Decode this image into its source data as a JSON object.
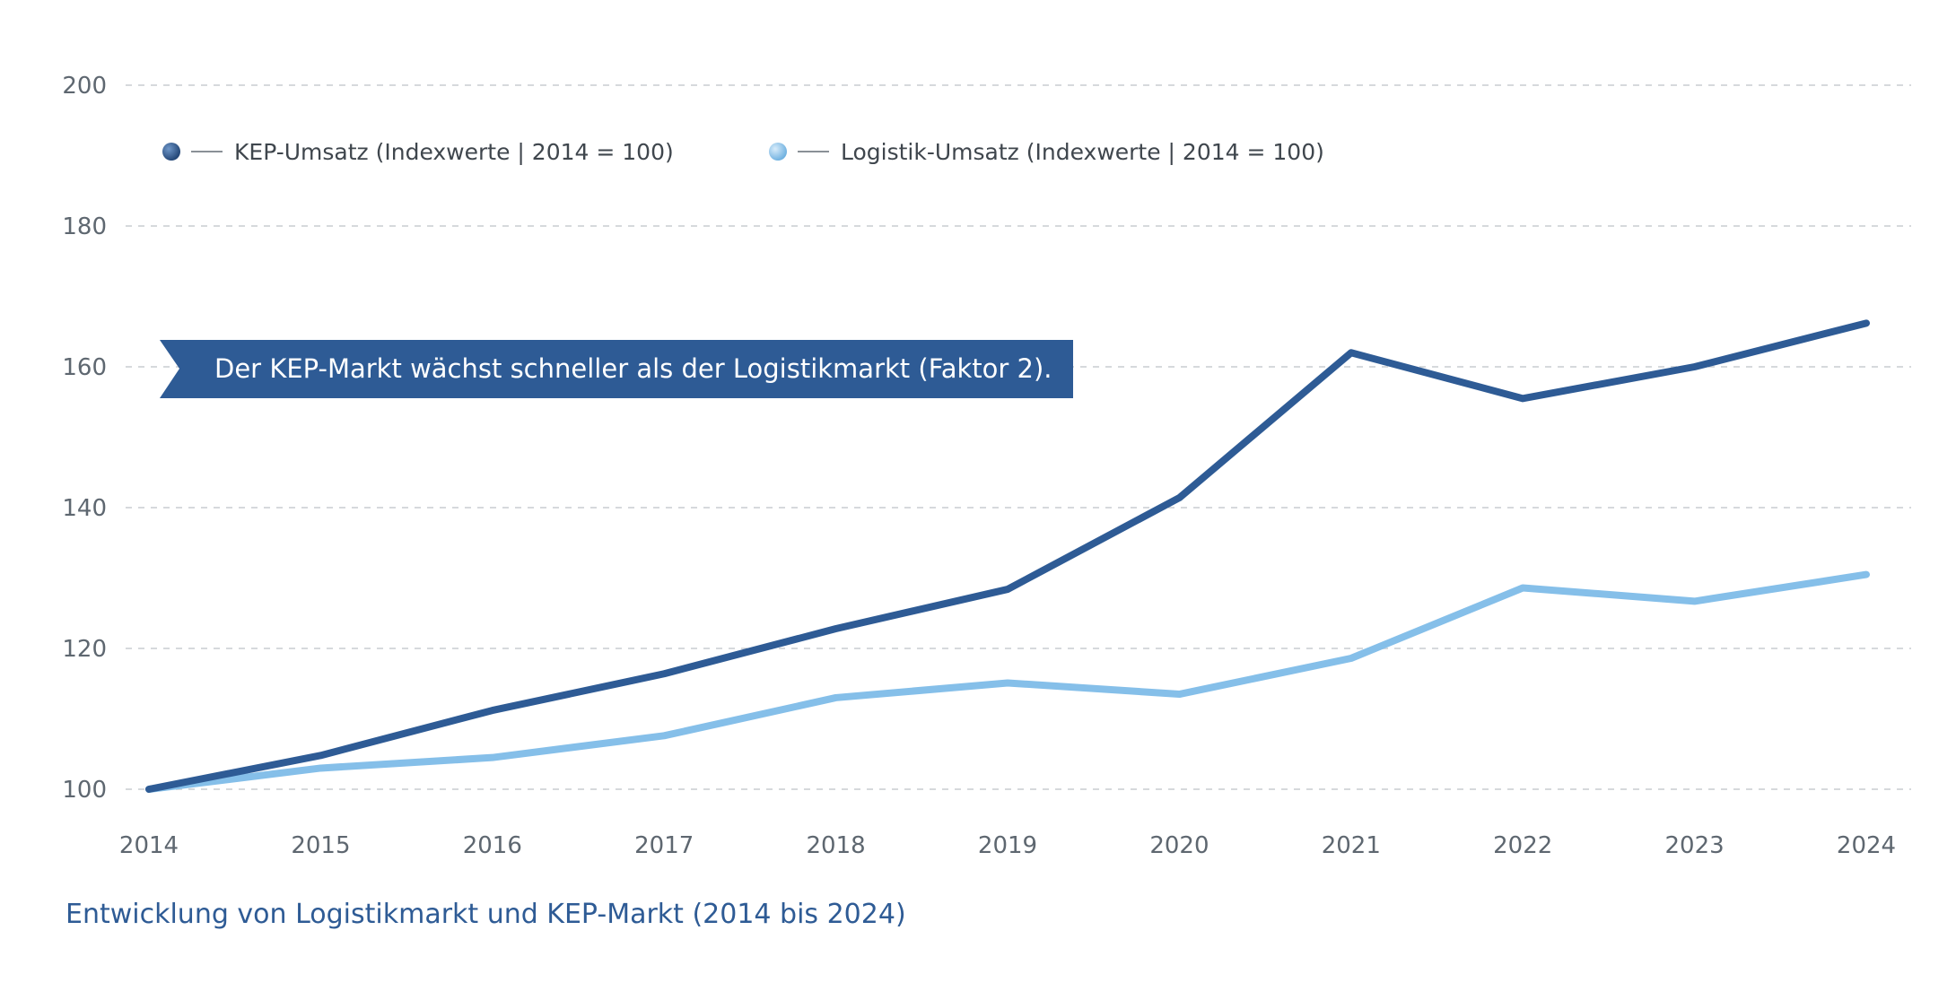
{
  "chart_data": {
    "type": "line",
    "title": "",
    "xlabel": "",
    "ylabel": "",
    "x": [
      2014,
      2015,
      2016,
      2017,
      2018,
      2019,
      2020,
      2021,
      2022,
      2023,
      2024
    ],
    "ylim": [
      100,
      200
    ],
    "yticks": [
      100,
      120,
      140,
      160,
      180,
      200
    ],
    "grid": true,
    "legend_position": "top-left",
    "series": [
      {
        "name": "KEP-Umsatz (Indexwerte | 2014 = 100)",
        "color": "#2e5b95",
        "values": [
          100,
          104.8,
          111.2,
          116.4,
          122.8,
          128.4,
          141.4,
          162,
          155.5,
          160,
          166.2
        ]
      },
      {
        "name": "Logistik-Umsatz (Indexwerte | 2014 = 100)",
        "color": "#85bfe9",
        "values": [
          100,
          103,
          104.5,
          107.6,
          113,
          115.1,
          113.5,
          118.6,
          128.6,
          126.7,
          130.5
        ]
      }
    ],
    "annotation": "Der KEP-Markt wächst schneller als der Logistikmarkt (Faktor 2).",
    "caption": "Entwicklung von Logistikmarkt und KEP-Markt (2014 bis 2024)"
  },
  "colors": {
    "gridline": "#d6d9dc",
    "axis_text": "#5e6770",
    "callout_bg": "#2e5b95",
    "caption": "#2e5b95"
  }
}
